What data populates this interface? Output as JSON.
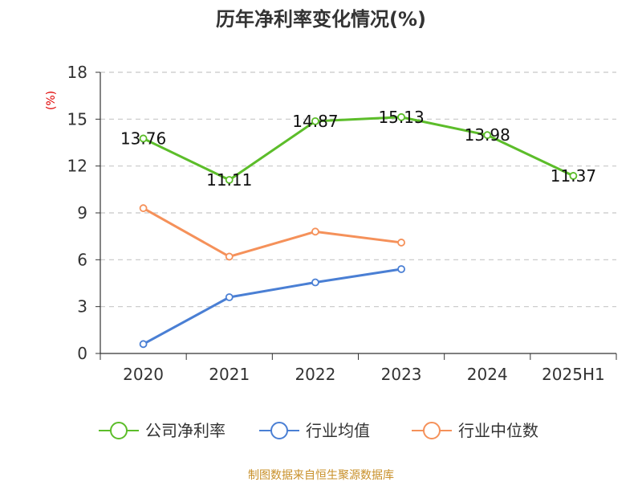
{
  "chart_data": {
    "type": "line",
    "title": "历年净利率变化情况(%)",
    "ylabel": "(%)",
    "xlabel": "",
    "categories": [
      "2020",
      "2021",
      "2022",
      "2023",
      "2024",
      "2025H1"
    ],
    "ylim": [
      0,
      18
    ],
    "yticks": [
      0,
      3,
      6,
      9,
      12,
      15,
      18
    ],
    "grid": true,
    "legend_position": "bottom",
    "series": [
      {
        "name": "公司净利率",
        "color": "#5cbd2a",
        "show_labels": true,
        "values": [
          13.76,
          11.11,
          14.87,
          15.13,
          13.98,
          11.37
        ]
      },
      {
        "name": "行业均值",
        "color": "#4a7fd4",
        "show_labels": false,
        "values": [
          0.6,
          3.6,
          4.55,
          5.4,
          null,
          null
        ]
      },
      {
        "name": "行业中位数",
        "color": "#f5915a",
        "show_labels": false,
        "values": [
          9.3,
          6.2,
          7.8,
          7.1,
          null,
          null
        ]
      }
    ]
  },
  "source_text": "制图数据来自恒生聚源数据库"
}
